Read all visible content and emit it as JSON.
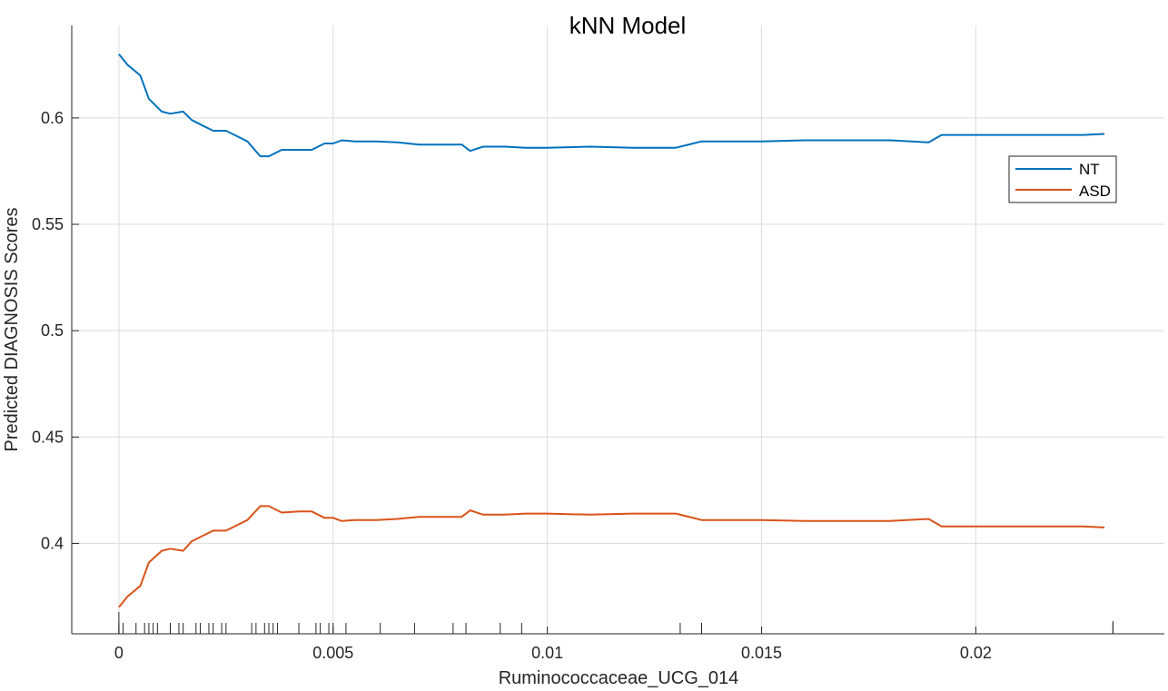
{
  "chart_data": {
    "type": "line",
    "title": "kNN Model",
    "xlabel": "Ruminococcaceae_UCG_014",
    "ylabel": "Predicted DIAGNOSIS Scores",
    "xlim": [
      -0.0011,
      0.0244
    ],
    "ylim": [
      0.3575,
      0.6435
    ],
    "xticks": [
      0,
      0.005,
      0.01,
      0.015,
      0.02
    ],
    "xtick_labels": [
      "0",
      "0.005",
      "0.01",
      "0.015",
      "0.02"
    ],
    "yticks": [
      0.4,
      0.45,
      0.5,
      0.55,
      0.6
    ],
    "ytick_labels": [
      "0.4",
      "0.45",
      "0.5",
      "0.55",
      "0.6"
    ],
    "grid": true,
    "legend_position": "top-right",
    "series": [
      {
        "name": "NT",
        "color": "#0072BD",
        "x": [
          0,
          0.0002,
          0.0005,
          0.0007,
          0.001,
          0.0012,
          0.0015,
          0.0017,
          0.002,
          0.0022,
          0.0025,
          0.0028,
          0.003,
          0.0033,
          0.0035,
          0.0038,
          0.0042,
          0.0045,
          0.0048,
          0.005,
          0.0052,
          0.0055,
          0.006,
          0.0065,
          0.007,
          0.0075,
          0.008,
          0.0082,
          0.0085,
          0.009,
          0.0095,
          0.01,
          0.011,
          0.012,
          0.013,
          0.0136,
          0.014,
          0.015,
          0.016,
          0.017,
          0.018,
          0.0189,
          0.0192,
          0.02,
          0.021,
          0.022,
          0.0225,
          0.023
        ],
        "y": [
          0.63,
          0.625,
          0.62,
          0.609,
          0.603,
          0.602,
          0.603,
          0.599,
          0.596,
          0.594,
          0.594,
          0.591,
          0.589,
          0.582,
          0.582,
          0.585,
          0.585,
          0.585,
          0.588,
          0.588,
          0.5895,
          0.589,
          0.589,
          0.5885,
          0.5875,
          0.5875,
          0.5875,
          0.5845,
          0.5865,
          0.5865,
          0.586,
          0.586,
          0.5865,
          0.586,
          0.586,
          0.589,
          0.589,
          0.589,
          0.5895,
          0.5895,
          0.5895,
          0.5885,
          0.592,
          0.592,
          0.592,
          0.592,
          0.592,
          0.5925
        ]
      },
      {
        "name": "ASD",
        "color": "#D95319",
        "x": [
          0,
          0.0002,
          0.0005,
          0.0007,
          0.001,
          0.0012,
          0.0015,
          0.0017,
          0.002,
          0.0022,
          0.0025,
          0.0028,
          0.003,
          0.0033,
          0.0035,
          0.0038,
          0.0042,
          0.0045,
          0.0048,
          0.005,
          0.0052,
          0.0055,
          0.006,
          0.0065,
          0.007,
          0.0075,
          0.008,
          0.0082,
          0.0085,
          0.009,
          0.0095,
          0.01,
          0.011,
          0.012,
          0.013,
          0.0136,
          0.014,
          0.015,
          0.016,
          0.017,
          0.018,
          0.0189,
          0.0192,
          0.02,
          0.021,
          0.022,
          0.0225,
          0.023
        ],
        "y": [
          0.37,
          0.375,
          0.38,
          0.391,
          0.3965,
          0.3975,
          0.3965,
          0.401,
          0.404,
          0.406,
          0.406,
          0.409,
          0.411,
          0.4175,
          0.4175,
          0.4145,
          0.415,
          0.415,
          0.412,
          0.412,
          0.4105,
          0.411,
          0.411,
          0.4115,
          0.4125,
          0.4125,
          0.4125,
          0.4155,
          0.4135,
          0.4135,
          0.414,
          0.414,
          0.4135,
          0.414,
          0.414,
          0.411,
          0.411,
          0.411,
          0.4105,
          0.4105,
          0.4105,
          0.4115,
          0.408,
          0.408,
          0.408,
          0.408,
          0.408,
          0.4075
        ]
      }
    ],
    "rug_x": [
      0.0,
      0.0001,
      0.0004,
      0.0006,
      0.0007,
      0.0008,
      0.0009,
      0.0012,
      0.0014,
      0.0015,
      0.0018,
      0.0019,
      0.0021,
      0.0022,
      0.0024,
      0.0025,
      0.0031,
      0.0032,
      0.0034,
      0.0035,
      0.0036,
      0.0037,
      0.0042,
      0.0046,
      0.0047,
      0.0049,
      0.005,
      0.0053,
      0.0061,
      0.0069,
      0.0078,
      0.0081,
      0.0089,
      0.0094,
      0.0131,
      0.0136,
      0.0232
    ]
  }
}
